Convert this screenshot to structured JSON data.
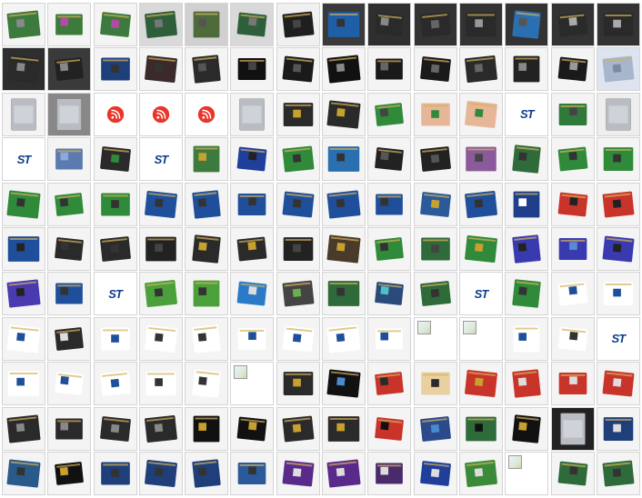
{
  "gallery": {
    "columns": 14,
    "rows": 11,
    "items": [
      {
        "kind": "board",
        "bg": "#f4f4f4",
        "pcb": "#3d7a3d",
        "chip": "#8a8a8a"
      },
      {
        "kind": "board",
        "bg": "#f4f4f4",
        "pcb": "#3d7a3d",
        "chip": "#b44aa6"
      },
      {
        "kind": "board",
        "bg": "#f4f4f4",
        "pcb": "#3d7a3d",
        "chip": "#b44aa6"
      },
      {
        "kind": "board",
        "bg": "#d9d9d9",
        "pcb": "#2f5f3a",
        "chip": "#777"
      },
      {
        "kind": "board",
        "bg": "#d0d0d0",
        "pcb": "#4f6b3c",
        "chip": "#555"
      },
      {
        "kind": "board",
        "bg": "#d9d9d9",
        "pcb": "#2f5f3a",
        "chip": "#777"
      },
      {
        "kind": "board",
        "bg": "#f0f0f0",
        "pcb": "#1f1f1f",
        "chip": "#444"
      },
      {
        "kind": "board",
        "bg": "#3a3a3a",
        "pcb": "#1f5fa8",
        "chip": "#333"
      },
      {
        "kind": "board",
        "bg": "#2f2f2f",
        "pcb": "#2a2a2a",
        "chip": "#888"
      },
      {
        "kind": "board",
        "bg": "#333333",
        "pcb": "#2a2a2a",
        "chip": "#666"
      },
      {
        "kind": "board",
        "bg": "#333333",
        "pcb": "#2a2a2a",
        "chip": "#999"
      },
      {
        "kind": "board",
        "bg": "#333333",
        "pcb": "#2a6fb0",
        "chip": "#555"
      },
      {
        "kind": "board",
        "bg": "#333333",
        "pcb": "#2a2a2a",
        "chip": "#aaa"
      },
      {
        "kind": "board",
        "bg": "#333333",
        "pcb": "#2a2a2a",
        "chip": "#aaa"
      },
      {
        "kind": "board",
        "bg": "#2e2e2e",
        "pcb": "#2a2a2a",
        "chip": "#888"
      },
      {
        "kind": "board",
        "bg": "#3a3a3a",
        "pcb": "#222",
        "chip": "#888"
      },
      {
        "kind": "board",
        "bg": "#f4f4f4",
        "pcb": "#1f3f7a",
        "chip": "#333"
      },
      {
        "kind": "board",
        "bg": "#f4f4f4",
        "pcb": "#3a2a2a",
        "chip": "#333"
      },
      {
        "kind": "board",
        "bg": "#f4f4f4",
        "pcb": "#2a2a2a",
        "chip": "#555"
      },
      {
        "kind": "board",
        "bg": "#f4f4f4",
        "pcb": "#111",
        "chip": "#444"
      },
      {
        "kind": "board",
        "bg": "#f4f4f4",
        "pcb": "#1a1a1a",
        "chip": "#555"
      },
      {
        "kind": "board",
        "bg": "#f4f4f4",
        "pcb": "#111",
        "chip": "#888"
      },
      {
        "kind": "board",
        "bg": "#f4f4f4",
        "pcb": "#1a1a1a",
        "chip": "#666"
      },
      {
        "kind": "board",
        "bg": "#f4f4f4",
        "pcb": "#1a1a1a",
        "chip": "#666"
      },
      {
        "kind": "board",
        "bg": "#f4f4f4",
        "pcb": "#2a2a2a",
        "chip": "#666"
      },
      {
        "kind": "board",
        "bg": "#f4f4f4",
        "pcb": "#222",
        "chip": "#888"
      },
      {
        "kind": "board",
        "bg": "#f4f4f4",
        "pcb": "#1a1a1a",
        "chip": "#999"
      },
      {
        "kind": "board",
        "bg": "#dde4f0",
        "pcb": "#a8b6cc",
        "chip": "#7a8aa0"
      },
      {
        "kind": "module",
        "bg": "#f4f4f4",
        "label": "ESP32-S3"
      },
      {
        "kind": "module",
        "bg": "#888888",
        "label": "ESP32-S3"
      },
      {
        "kind": "esp"
      },
      {
        "kind": "esp"
      },
      {
        "kind": "esp"
      },
      {
        "kind": "module",
        "bg": "#f4f4f4",
        "label": "ESP32-C3"
      },
      {
        "kind": "board",
        "bg": "#f4f4f4",
        "pcb": "#2a2a2a",
        "chip": "#c8a030"
      },
      {
        "kind": "board",
        "bg": "#f4f4f4",
        "pcb": "#2a2a2a",
        "chip": "#c8a030"
      },
      {
        "kind": "board",
        "bg": "#f4f4f4",
        "pcb": "#2f8a3a",
        "chip": "#444"
      },
      {
        "kind": "board",
        "bg": "#f4f4f4",
        "pcb": "#e7b699",
        "chip": "#2f8a3a"
      },
      {
        "kind": "board",
        "bg": "#f4f4f4",
        "pcb": "#e7b699",
        "chip": "#2f8a3a"
      },
      {
        "kind": "st"
      },
      {
        "kind": "board",
        "bg": "#f4f4f4",
        "pcb": "#2f7a3a",
        "chip": "#444"
      },
      {
        "kind": "module",
        "bg": "#eeeeee",
        "label": "BL652"
      },
      {
        "kind": "st"
      },
      {
        "kind": "board",
        "bg": "#f4f4f4",
        "pcb": "#5a7ab0",
        "chip": "#8fa8d8"
      },
      {
        "kind": "board",
        "bg": "#f4f4f4",
        "pcb": "#2a2a2a",
        "chip": "#2f8a3a"
      },
      {
        "kind": "st"
      },
      {
        "kind": "board",
        "bg": "#f4f4f4",
        "pcb": "#3d7a3d",
        "chip": "#c8a030"
      },
      {
        "kind": "board",
        "bg": "#f4f4f4",
        "pcb": "#1f3f9a",
        "chip": "#222"
      },
      {
        "kind": "board",
        "bg": "#f4f4f4",
        "pcb": "#2f8a3a",
        "chip": "#333"
      },
      {
        "kind": "board",
        "bg": "#f4f4f4",
        "pcb": "#2a6fb0",
        "chip": "#333"
      },
      {
        "kind": "board",
        "bg": "#f4f4f4",
        "pcb": "#222",
        "chip": "#555"
      },
      {
        "kind": "board",
        "bg": "#f4f4f4",
        "pcb": "#222",
        "chip": "#555"
      },
      {
        "kind": "board",
        "bg": "#f4f4f4",
        "pcb": "#8a5a9a",
        "chip": "#444"
      },
      {
        "kind": "board",
        "bg": "#f4f4f4",
        "pcb": "#2f6a3a",
        "chip": "#333"
      },
      {
        "kind": "board",
        "bg": "#f4f4f4",
        "pcb": "#2f8a3a",
        "chip": "#333"
      },
      {
        "kind": "board",
        "bg": "#f4f4f4",
        "pcb": "#2f8a3a",
        "chip": "#333"
      },
      {
        "kind": "board",
        "bg": "#f4f4f4",
        "pcb": "#2f8a3a",
        "chip": "#333"
      },
      {
        "kind": "board",
        "bg": "#f4f4f4",
        "pcb": "#2f8a3a",
        "chip": "#333"
      },
      {
        "kind": "board",
        "bg": "#f4f4f4",
        "pcb": "#2f8a3a",
        "chip": "#333"
      },
      {
        "kind": "board",
        "bg": "#f4f4f4",
        "pcb": "#1f4f9a",
        "chip": "#333"
      },
      {
        "kind": "board",
        "bg": "#f4f4f4",
        "pcb": "#1f4f9a",
        "chip": "#333"
      },
      {
        "kind": "board",
        "bg": "#f4f4f4",
        "pcb": "#1f4f9a",
        "chip": "#333"
      },
      {
        "kind": "board",
        "bg": "#f4f4f4",
        "pcb": "#1f4f9a",
        "chip": "#333"
      },
      {
        "kind": "board",
        "bg": "#f4f4f4",
        "pcb": "#1f4f9a",
        "chip": "#333"
      },
      {
        "kind": "board",
        "bg": "#f4f4f4",
        "pcb": "#1f4f9a",
        "chip": "#333"
      },
      {
        "kind": "board",
        "bg": "#f4f4f4",
        "pcb": "#2a5a9a",
        "chip": "#c8a030"
      },
      {
        "kind": "board",
        "bg": "#f4f4f4",
        "pcb": "#1f4f9a",
        "chip": "#333"
      },
      {
        "kind": "board",
        "bg": "#f4f4f4",
        "pcb": "#1f3f8a",
        "chip": "#ffffff"
      },
      {
        "kind": "board",
        "bg": "#f4f4f4",
        "pcb": "#c8342a",
        "chip": "#222"
      },
      {
        "kind": "board",
        "bg": "#f4f4f4",
        "pcb": "#c8342a",
        "chip": "#222"
      },
      {
        "kind": "board",
        "bg": "#f4f4f4",
        "pcb": "#1f4f9a",
        "chip": "#222"
      },
      {
        "kind": "board",
        "bg": "#f4f4f4",
        "pcb": "#2a2a2a",
        "chip": "#333"
      },
      {
        "kind": "board",
        "bg": "#f4f4f4",
        "pcb": "#2a2a2a",
        "chip": "#333"
      },
      {
        "kind": "board",
        "bg": "#f4f4f4",
        "pcb": "#222",
        "chip": "#444"
      },
      {
        "kind": "board",
        "bg": "#f4f4f4",
        "pcb": "#2a2a2a",
        "chip": "#c8a030"
      },
      {
        "kind": "board",
        "bg": "#f4f4f4",
        "pcb": "#2a2a2a",
        "chip": "#c8a030"
      },
      {
        "kind": "board",
        "bg": "#f4f4f4",
        "pcb": "#222",
        "chip": "#444"
      },
      {
        "kind": "board",
        "bg": "#f4f4f4",
        "pcb": "#4a3a2a",
        "chip": "#c8a030"
      },
      {
        "kind": "board",
        "bg": "#f4f4f4",
        "pcb": "#2f8a3a",
        "chip": "#333"
      },
      {
        "kind": "board",
        "bg": "#f4f4f4",
        "pcb": "#2f6a3a",
        "chip": "#444"
      },
      {
        "kind": "board",
        "bg": "#f4f4f4",
        "pcb": "#2f8a3a",
        "chip": "#c8a030"
      },
      {
        "kind": "board",
        "bg": "#f4f4f4",
        "pcb": "#3a3ab0",
        "chip": "#222"
      },
      {
        "kind": "board",
        "bg": "#f4f4f4",
        "pcb": "#3a3ab0",
        "chip": "#5a8ad0"
      },
      {
        "kind": "board",
        "bg": "#f4f4f4",
        "pcb": "#3a3ab0",
        "chip": "#222"
      },
      {
        "kind": "board",
        "bg": "#f4f4f4",
        "pcb": "#4a3ab0",
        "chip": "#222"
      },
      {
        "kind": "board",
        "bg": "#f4f4f4",
        "pcb": "#1f4f9a",
        "chip": "#333"
      },
      {
        "kind": "st"
      },
      {
        "kind": "board",
        "bg": "#f4f4f4",
        "pcb": "#4aa03a",
        "chip": "#333"
      },
      {
        "kind": "board",
        "bg": "#f4f4f4",
        "pcb": "#4aa03a",
        "chip": "#333"
      },
      {
        "kind": "board",
        "bg": "#f4f4f4",
        "pcb": "#2a7ac8",
        "chip": "#ddd"
      },
      {
        "kind": "board",
        "bg": "#f4f4f4",
        "pcb": "#444",
        "chip": "#6ab04a"
      },
      {
        "kind": "board",
        "bg": "#f4f4f4",
        "pcb": "#2f6a3a",
        "chip": "#333"
      },
      {
        "kind": "board",
        "bg": "#f4f4f4",
        "pcb": "#2a4a7a",
        "chip": "#4ac0c8"
      },
      {
        "kind": "board",
        "bg": "#f4f4f4",
        "pcb": "#2f6a3a",
        "chip": "#333"
      },
      {
        "kind": "st"
      },
      {
        "kind": "board",
        "bg": "#f4f4f4",
        "pcb": "#2f8a3a",
        "chip": "#333"
      },
      {
        "kind": "board",
        "bg": "#f4f4f4",
        "pcb": "#ffffff",
        "chip": "#1f4f9a"
      },
      {
        "kind": "board",
        "bg": "#f4f4f4",
        "pcb": "#ffffff",
        "chip": "#1f4f9a"
      },
      {
        "kind": "board",
        "bg": "#f4f4f4",
        "pcb": "#ffffff",
        "chip": "#1f4f9a"
      },
      {
        "kind": "board",
        "bg": "#f4f4f4",
        "pcb": "#2a2a2a",
        "chip": "#ddd"
      },
      {
        "kind": "board",
        "bg": "#f4f4f4",
        "pcb": "#ffffff",
        "chip": "#1f4f9a"
      },
      {
        "kind": "board",
        "bg": "#f4f4f4",
        "pcb": "#ffffff",
        "chip": "#333"
      },
      {
        "kind": "board",
        "bg": "#f4f4f4",
        "pcb": "#ffffff",
        "chip": "#333"
      },
      {
        "kind": "board",
        "bg": "#f4f4f4",
        "pcb": "#ffffff",
        "chip": "#1f4f9a"
      },
      {
        "kind": "board",
        "bg": "#f4f4f4",
        "pcb": "#ffffff",
        "chip": "#1f4f9a"
      },
      {
        "kind": "board",
        "bg": "#f4f4f4",
        "pcb": "#ffffff",
        "chip": "#1f4f9a"
      },
      {
        "kind": "board",
        "bg": "#f4f4f4",
        "pcb": "#ffffff",
        "chip": "#1f4f9a"
      },
      {
        "kind": "broken"
      },
      {
        "kind": "broken"
      },
      {
        "kind": "board",
        "bg": "#f4f4f4",
        "pcb": "#ffffff",
        "chip": "#1f4f9a"
      },
      {
        "kind": "board",
        "bg": "#f4f4f4",
        "pcb": "#ffffff",
        "chip": "#333"
      },
      {
        "kind": "st"
      },
      {
        "kind": "board",
        "bg": "#f4f4f4",
        "pcb": "#ffffff",
        "chip": "#1f4f9a"
      },
      {
        "kind": "board",
        "bg": "#f4f4f4",
        "pcb": "#ffffff",
        "chip": "#1f4f9a"
      },
      {
        "kind": "board",
        "bg": "#f4f4f4",
        "pcb": "#ffffff",
        "chip": "#1f4f9a"
      },
      {
        "kind": "board",
        "bg": "#f4f4f4",
        "pcb": "#ffffff",
        "chip": "#333"
      },
      {
        "kind": "board",
        "bg": "#f4f4f4",
        "pcb": "#ffffff",
        "chip": "#333"
      },
      {
        "kind": "broken"
      },
      {
        "kind": "board",
        "bg": "#f4f4f4",
        "pcb": "#2a2a2a",
        "chip": "#c8a030"
      },
      {
        "kind": "board",
        "bg": "#f4f4f4",
        "pcb": "#111",
        "chip": "#4a8ad0"
      },
      {
        "kind": "board",
        "bg": "#f4f4f4",
        "pcb": "#c8342a",
        "chip": "#2a2a2a"
      },
      {
        "kind": "board",
        "bg": "#f4f4f4",
        "pcb": "#e8d0a0",
        "chip": "#2a2a2a"
      },
      {
        "kind": "board",
        "bg": "#f4f4f4",
        "pcb": "#c8342a",
        "chip": "#c8a030"
      },
      {
        "kind": "board",
        "bg": "#f4f4f4",
        "pcb": "#c8342a",
        "chip": "#ddd"
      },
      {
        "kind": "board",
        "bg": "#f4f4f4",
        "pcb": "#c8342a",
        "chip": "#ddd"
      },
      {
        "kind": "board",
        "bg": "#f4f4f4",
        "pcb": "#c8342a",
        "chip": "#ddd"
      },
      {
        "kind": "board",
        "bg": "#f4f4f4",
        "pcb": "#2a2a2a",
        "chip": "#888"
      },
      {
        "kind": "board",
        "bg": "#f4f4f4",
        "pcb": "#2a2a2a",
        "chip": "#888"
      },
      {
        "kind": "board",
        "bg": "#f4f4f4",
        "pcb": "#2a2a2a",
        "chip": "#888"
      },
      {
        "kind": "board",
        "bg": "#f4f4f4",
        "pcb": "#2a2a2a",
        "chip": "#888"
      },
      {
        "kind": "board",
        "bg": "#f4f4f4",
        "pcb": "#111",
        "chip": "#c8a030"
      },
      {
        "kind": "board",
        "bg": "#f4f4f4",
        "pcb": "#111",
        "chip": "#c8a030"
      },
      {
        "kind": "board",
        "bg": "#f4f4f4",
        "pcb": "#2a2a2a",
        "chip": "#c8a030"
      },
      {
        "kind": "board",
        "bg": "#f4f4f4",
        "pcb": "#2a2a2a",
        "chip": "#c8a030"
      },
      {
        "kind": "board",
        "bg": "#f4f4f4",
        "pcb": "#c8342a",
        "chip": "#111"
      },
      {
        "kind": "board",
        "bg": "#f4f4f4",
        "pcb": "#2a4a8a",
        "chip": "#4a8ad0"
      },
      {
        "kind": "board",
        "bg": "#f4f4f4",
        "pcb": "#2f6a3a",
        "chip": "#111"
      },
      {
        "kind": "board",
        "bg": "#f4f4f4",
        "pcb": "#111",
        "chip": "#c8a030"
      },
      {
        "kind": "module",
        "bg": "#222222",
        "label": "STM32"
      },
      {
        "kind": "board",
        "bg": "#f4f4f4",
        "pcb": "#1f3f7a",
        "chip": "#ddd"
      },
      {
        "kind": "board",
        "bg": "#f4f4f4",
        "pcb": "#2a5a8a",
        "chip": "#333"
      },
      {
        "kind": "board",
        "bg": "#f4f4f4",
        "pcb": "#111",
        "chip": "#c8a030"
      },
      {
        "kind": "board",
        "bg": "#f4f4f4",
        "pcb": "#1f3f7a",
        "chip": "#333"
      },
      {
        "kind": "board",
        "bg": "#f4f4f4",
        "pcb": "#1f3f7a",
        "chip": "#333"
      },
      {
        "kind": "board",
        "bg": "#f4f4f4",
        "pcb": "#1f3f7a",
        "chip": "#333"
      },
      {
        "kind": "board",
        "bg": "#f4f4f4",
        "pcb": "#2a5a9a",
        "chip": "#333"
      },
      {
        "kind": "board",
        "bg": "#f4f4f4",
        "pcb": "#5a2a8a",
        "chip": "#ddd"
      },
      {
        "kind": "board",
        "bg": "#f4f4f4",
        "pcb": "#5a2a8a",
        "chip": "#ddd"
      },
      {
        "kind": "board",
        "bg": "#f4f4f4",
        "pcb": "#4a2a6a",
        "chip": "#ddd"
      },
      {
        "kind": "board",
        "bg": "#f4f4f4",
        "pcb": "#1f3f9a",
        "chip": "#ddd"
      },
      {
        "kind": "board",
        "bg": "#f4f4f4",
        "pcb": "#3a8a3a",
        "chip": "#ddd"
      },
      {
        "kind": "broken"
      },
      {
        "kind": "board",
        "bg": "#f4f4f4",
        "pcb": "#2f6a3a",
        "chip": "#333"
      },
      {
        "kind": "board",
        "bg": "#f4f4f4",
        "pcb": "#2f6a3a",
        "chip": "#333"
      }
    ]
  },
  "brand": {
    "st_text": "ST",
    "st_color": "#0f3e8c",
    "espressif_color": "#e8362b"
  }
}
